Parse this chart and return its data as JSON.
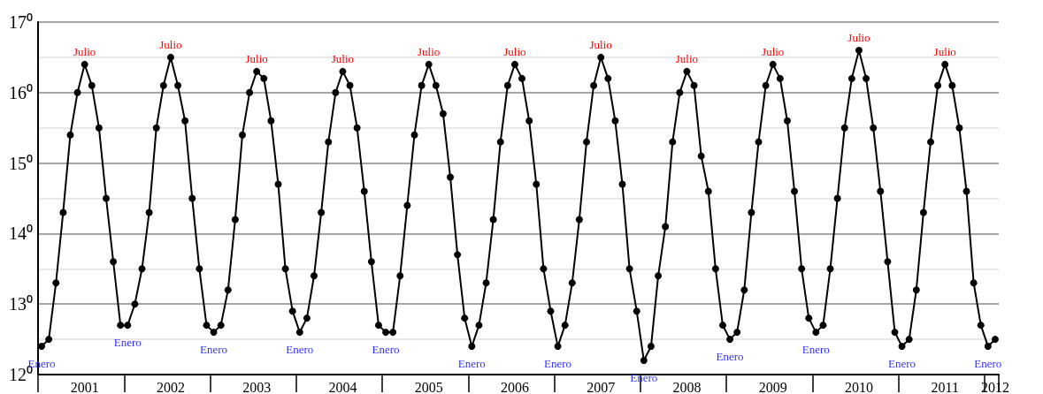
{
  "chart_data": {
    "type": "line",
    "categories": [
      null,
      null,
      null,
      null,
      null,
      null,
      "2001",
      null,
      null,
      null,
      null,
      null,
      null,
      null,
      null,
      null,
      null,
      null,
      "2002",
      null,
      null,
      null,
      null,
      null,
      null,
      null,
      null,
      null,
      null,
      null,
      "2003",
      null,
      null,
      null,
      null,
      null,
      null,
      null,
      null,
      null,
      null,
      null,
      "2004",
      null,
      null,
      null,
      null,
      null,
      null,
      null,
      null,
      null,
      null,
      null,
      "2005",
      null,
      null,
      null,
      null,
      null,
      null,
      null,
      null,
      null,
      null,
      null,
      "2006",
      null,
      null,
      null,
      null,
      null,
      null,
      null,
      null,
      null,
      null,
      null,
      "2007",
      null,
      null,
      null,
      null,
      null,
      null,
      null,
      null,
      null,
      null,
      null,
      "2008",
      null,
      null,
      null,
      null,
      null,
      null,
      null,
      null,
      null,
      null,
      null,
      "2009",
      null,
      null,
      null,
      null,
      null,
      null,
      null,
      null,
      null,
      null,
      null,
      "2010",
      null,
      null,
      null,
      null,
      null,
      null,
      null,
      null,
      null,
      null,
      null,
      "2011",
      null,
      null,
      null,
      null,
      null,
      null,
      "2012"
    ],
    "series": [
      {
        "color": "#000000",
        "values": [
          12.4,
          12.5,
          13.3,
          14.3,
          15.4,
          16.0,
          16.4,
          16.1,
          15.5,
          14.5,
          13.6,
          12.7,
          12.7,
          13.0,
          13.5,
          14.3,
          15.5,
          16.1,
          16.5,
          16.1,
          15.6,
          14.5,
          13.5,
          12.7,
          12.6,
          12.7,
          13.2,
          14.2,
          15.4,
          16.0,
          16.3,
          16.2,
          15.6,
          14.7,
          13.5,
          12.9,
          12.6,
          12.8,
          13.4,
          14.3,
          15.3,
          16.0,
          16.3,
          16.1,
          15.5,
          14.6,
          13.6,
          12.7,
          12.6,
          12.6,
          13.4,
          14.4,
          15.4,
          16.1,
          16.4,
          16.1,
          15.7,
          14.8,
          13.7,
          12.8,
          12.4,
          12.7,
          13.3,
          14.2,
          15.3,
          16.1,
          16.4,
          16.2,
          15.6,
          14.7,
          13.5,
          12.9,
          12.4,
          12.7,
          13.3,
          14.2,
          15.3,
          16.1,
          16.5,
          16.2,
          15.6,
          14.7,
          13.5,
          12.9,
          12.2,
          12.4,
          13.4,
          14.1,
          15.3,
          16.0,
          16.3,
          16.1,
          15.1,
          14.6,
          13.5,
          12.7,
          12.5,
          12.6,
          13.2,
          14.3,
          15.3,
          16.1,
          16.4,
          16.2,
          15.6,
          14.6,
          13.5,
          12.8,
          12.6,
          12.7,
          13.5,
          14.5,
          15.5,
          16.2,
          16.6,
          16.2,
          15.5,
          14.6,
          13.6,
          12.6,
          12.4,
          12.5,
          13.2,
          14.3,
          15.3,
          16.1,
          16.4,
          16.1,
          15.5,
          14.6,
          13.3,
          12.7,
          12.4,
          12.5
        ],
        "value_labels": [
          "Enero",
          null,
          null,
          null,
          null,
          null,
          "Julio",
          null,
          null,
          null,
          null,
          null,
          "Enero",
          null,
          null,
          null,
          null,
          null,
          "Julio",
          null,
          null,
          null,
          null,
          null,
          "Enero",
          null,
          null,
          null,
          null,
          null,
          "Julio",
          null,
          null,
          null,
          null,
          null,
          "Enero",
          null,
          null,
          null,
          null,
          null,
          "Julio",
          null,
          null,
          null,
          null,
          null,
          "Enero",
          null,
          null,
          null,
          null,
          null,
          "Julio",
          null,
          null,
          null,
          null,
          null,
          "Enero",
          null,
          null,
          null,
          null,
          null,
          "Julio",
          null,
          null,
          null,
          null,
          null,
          "Enero",
          null,
          null,
          null,
          null,
          null,
          "Julio",
          null,
          null,
          null,
          null,
          null,
          "Enero",
          null,
          null,
          null,
          null,
          null,
          "Julio",
          null,
          null,
          null,
          null,
          null,
          "Enero",
          null,
          null,
          null,
          null,
          null,
          "Julio",
          null,
          null,
          null,
          null,
          null,
          "Enero",
          null,
          null,
          null,
          null,
          null,
          "Julio",
          null,
          null,
          null,
          null,
          null,
          "Enero",
          null,
          null,
          null,
          null,
          null,
          "Julio",
          null,
          null,
          null,
          null,
          null,
          "Enero",
          null
        ]
      }
    ],
    "ylim": [
      12,
      17
    ],
    "yticks": [
      {
        "value": 12,
        "label": "12⁰"
      },
      {
        "value": 12.5,
        "label": null
      },
      {
        "value": 13,
        "label": "13⁰"
      },
      {
        "value": 13.5,
        "label": null
      },
      {
        "value": 14,
        "label": "14⁰"
      },
      {
        "value": 14.5,
        "label": null
      },
      {
        "value": 15,
        "label": "15⁰"
      },
      {
        "value": 15.5,
        "label": null
      },
      {
        "value": 16,
        "label": "16⁰"
      },
      {
        "value": 16.5,
        "label": null
      },
      {
        "value": 17,
        "label": "17⁰"
      }
    ],
    "grid": "y",
    "marker": "circle",
    "line_style": "solid"
  }
}
